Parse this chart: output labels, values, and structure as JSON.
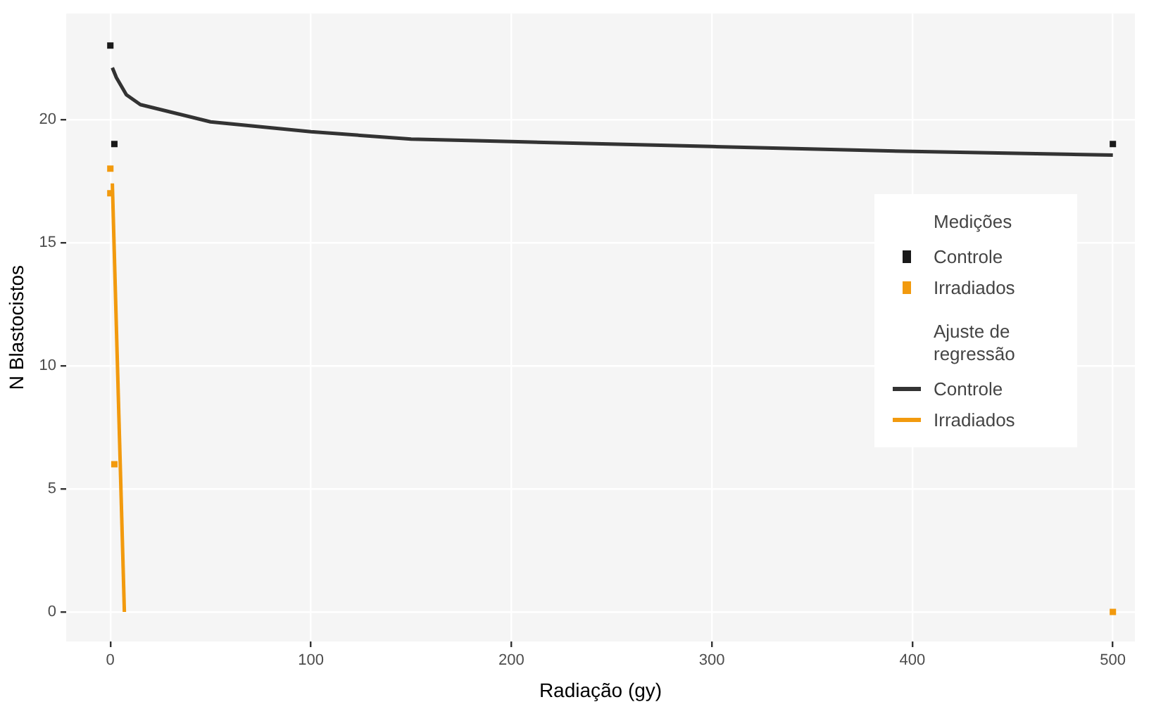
{
  "chart_data": {
    "type": "scatter",
    "xlabel": "Radiação (gy)",
    "ylabel": "N Blastocistos",
    "legend_title": [
      "Medições",
      "Ajuste de regressão"
    ],
    "xlim": [
      -22,
      511
    ],
    "xticks": [
      0,
      100,
      200,
      300,
      400,
      500
    ],
    "ylim": [
      -1.2,
      24.3
    ],
    "yticks": [
      0,
      5,
      10,
      15,
      20
    ],
    "grid": true,
    "legend": "right",
    "marker": "square",
    "series": [
      {
        "name": "Controle",
        "color": "#1a1a1a",
        "x": [
          0,
          2,
          500
        ],
        "values": [
          23,
          19,
          19
        ]
      },
      {
        "name": "Irradiados",
        "color": "#f29a0e",
        "x": [
          0,
          0,
          2,
          500
        ],
        "values": [
          18,
          17,
          6,
          0
        ]
      },
      {
        "name": "Controle",
        "type": "line",
        "marker": "none",
        "color": "#333333",
        "x": [
          1,
          3,
          8,
          15,
          30,
          50,
          100,
          150,
          200,
          300,
          400,
          500
        ],
        "values": [
          22.1,
          21.7,
          21.0,
          20.6,
          20.3,
          19.9,
          19.5,
          19.2,
          19.1,
          18.9,
          18.7,
          18.55
        ]
      },
      {
        "name": "Irradiados",
        "type": "line",
        "marker": "none",
        "color": "#f29a0e",
        "x": [
          1,
          7
        ],
        "values": [
          17.4,
          0
        ]
      }
    ]
  }
}
